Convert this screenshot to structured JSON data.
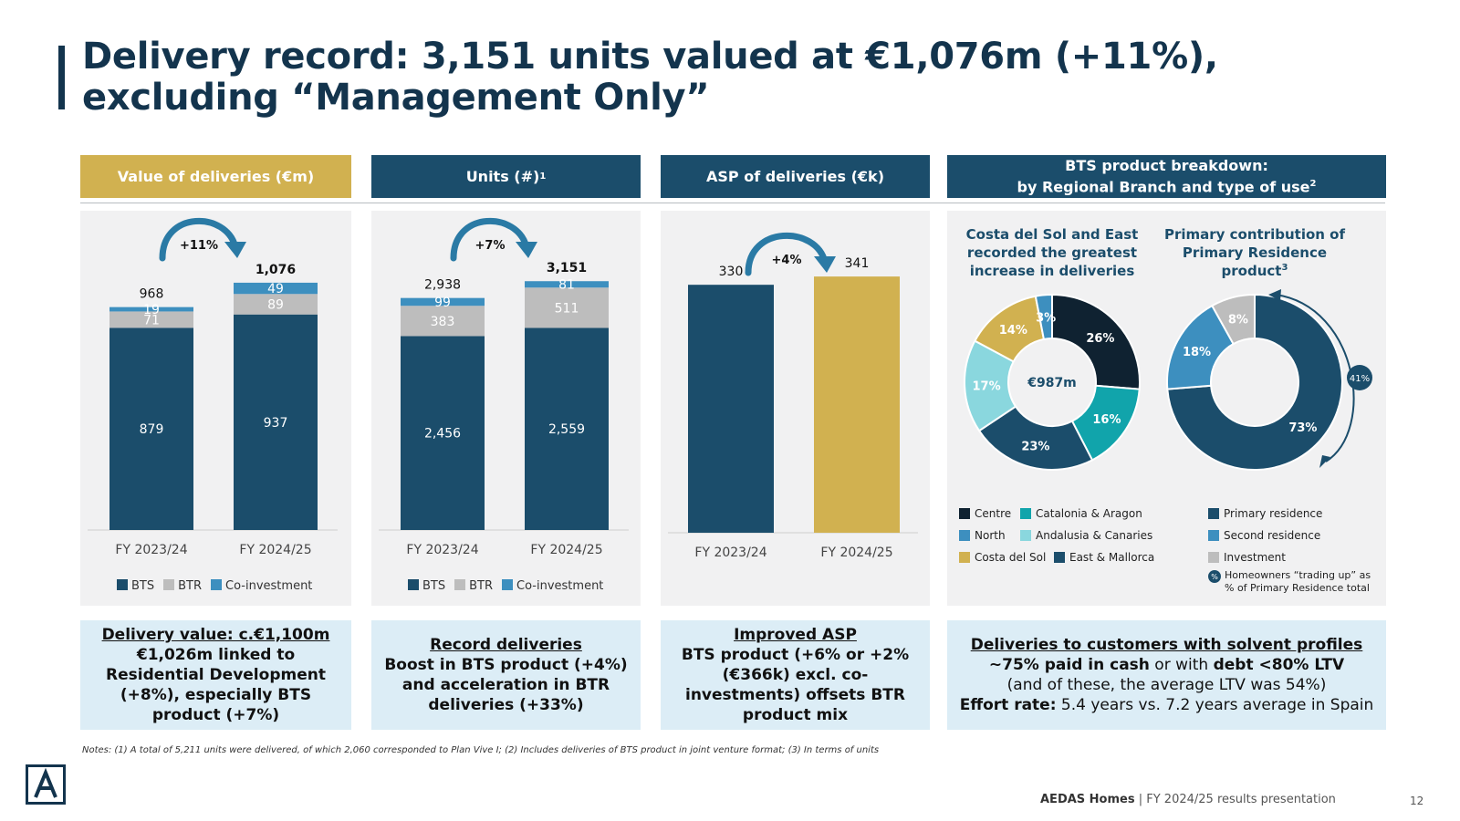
{
  "title": "Delivery record: 3,151 units valued at €1,076m (+11%), excluding “Management Only”",
  "headers": {
    "value": "Value of deliveries (€m)",
    "units": "Units (#)",
    "units_sup": "1",
    "asp": "ASP of deliveries (€k)",
    "bts_line1": "BTS product breakdown:",
    "bts_line2": "by Regional Branch and type of use",
    "bts_sup": "2"
  },
  "colors": {
    "navy": "#1b4d6b",
    "gold": "#d1b150",
    "grey": "#bdbdbd",
    "blue": "#3d8fbf",
    "dark": "#0f2231",
    "teal": "#11a4ab",
    "lightteal": "#8ad7de",
    "light": "#dcedf6"
  },
  "legend": {
    "bts": "BTS",
    "btr": "BTR",
    "coinv": "Co-investment"
  },
  "chart_data": [
    {
      "type": "bar",
      "stacked": true,
      "title": "Value of deliveries (€m)",
      "categories": [
        "FY 2023/24",
        "FY 2024/25"
      ],
      "series": [
        {
          "name": "BTS",
          "values": [
            879,
            937
          ]
        },
        {
          "name": "BTR",
          "values": [
            71,
            89
          ]
        },
        {
          "name": "Co-investment",
          "values": [
            19,
            49
          ]
        }
      ],
      "totals": [
        "968",
        "1,076"
      ],
      "labels": {
        "BTS": [
          "879",
          "937"
        ],
        "BTR": [
          "71",
          "89"
        ],
        "Co-investment": [
          "19",
          "49"
        ]
      },
      "growth": "+11%",
      "ylim": [
        0,
        1150
      ]
    },
    {
      "type": "bar",
      "stacked": true,
      "title": "Units (#)",
      "categories": [
        "FY 2023/24",
        "FY 2024/25"
      ],
      "series": [
        {
          "name": "BTS",
          "values": [
            2456,
            2559
          ]
        },
        {
          "name": "BTR",
          "values": [
            383,
            511
          ]
        },
        {
          "name": "Co-investment",
          "values": [
            99,
            81
          ]
        }
      ],
      "totals": [
        "2,938",
        "3,151"
      ],
      "labels": {
        "BTS": [
          "2,456",
          "2,559"
        ],
        "BTR": [
          "383",
          "511"
        ],
        "Co-investment": [
          "99",
          "81"
        ]
      },
      "growth": "+7%",
      "ylim": [
        0,
        3350
      ]
    },
    {
      "type": "bar",
      "title": "ASP of deliveries (€k)",
      "categories": [
        "FY 2023/24",
        "FY 2024/25"
      ],
      "values": [
        330,
        341
      ],
      "labels": [
        "330",
        "341"
      ],
      "growth": "+4%",
      "ylim": [
        0,
        380
      ]
    },
    {
      "type": "pie",
      "title": "Costa del Sol and East recorded the greatest increase in deliveries",
      "center_label": "€987m",
      "slices": [
        {
          "name": "Centre",
          "value": 26,
          "label": "26%"
        },
        {
          "name": "Catalonia & Aragon",
          "value": 16,
          "label": "16%"
        },
        {
          "name": "East & Mallorca",
          "value": 23,
          "label": "23%"
        },
        {
          "name": "Andalusia & Canaries",
          "value": 17,
          "label": "17%"
        },
        {
          "name": "Costa del Sol",
          "value": 14,
          "label": "14%"
        },
        {
          "name": "North",
          "value": 3,
          "label": "3%"
        }
      ]
    },
    {
      "type": "pie",
      "title": "Primary contribution of Primary Residence product",
      "title_sup": "3",
      "slices": [
        {
          "name": "Primary residence",
          "value": 73,
          "label": "73%"
        },
        {
          "name": "Second residence",
          "value": 18,
          "label": "18%"
        },
        {
          "name": "Investment",
          "value": 8,
          "label": "8%"
        }
      ],
      "trading_up_pct": "41%",
      "trading_up_note": "Homeowners “trading up” as % of Primary Residence total"
    }
  ],
  "donut_titles": {
    "left_lines": [
      "Costa del Sol and East",
      "recorded the greatest",
      "increase in deliveries"
    ],
    "right_lines": [
      "Primary contribution of",
      "Primary Residence",
      "product"
    ],
    "right_sup": "3"
  },
  "pct_symbol": "%",
  "bottom": {
    "value": {
      "head": "Delivery value: c.€1,100m",
      "body": "€1,026m linked to Residential Development (+8%), especially BTS product (+7%)"
    },
    "units": {
      "head": "Record deliveries",
      "body": "Boost in BTS product (+4%) and acceleration in BTR deliveries (+33%)"
    },
    "asp": {
      "head": "Improved ASP",
      "body": "BTS product (+6% or +2% (€366k) excl. co-investments) offsets BTR product mix"
    },
    "bts": {
      "head": "Deliveries to customers with solvent profiles",
      "line2_a": "~75% paid in cash",
      "line2_b": " or with ",
      "line2_c": "debt <80% LTV",
      "line3": "(and of these, the average LTV was 54%)",
      "line4_a": "Effort rate:",
      "line4_b": " 5.4 years vs. 7.2 years average in Spain"
    }
  },
  "notes": "Notes: (1) A total of 5,211 units were delivered, of which 2,060 corresponded to Plan Vive I; (2) Includes deliveries of BTS product in joint venture format; (3) In terms of units",
  "footer": {
    "brand": "AEDAS Homes",
    "sep": " | ",
    "text": "FY 2024/25 results presentation",
    "page": "12"
  }
}
